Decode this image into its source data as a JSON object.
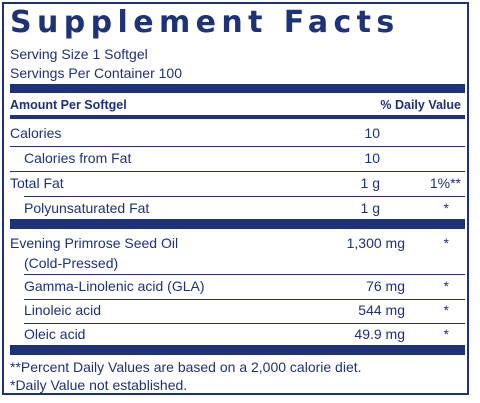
{
  "panel": {
    "title": "Supplement Facts",
    "serving_size": "Serving Size 1 Softgel",
    "servings_per_container": "Servings Per Container 100"
  },
  "header": {
    "amount_per": "Amount Per Softgel",
    "daily_value": "% Daily Value"
  },
  "rows": [
    {
      "name": "Calories",
      "amount": "10",
      "dv": ""
    },
    {
      "name": "Calories from Fat",
      "amount": "10",
      "dv": ""
    },
    {
      "name": "Total Fat",
      "amount": "1 g",
      "dv": "1%**"
    },
    {
      "name": "Polyunsaturated Fat",
      "amount": "1 g",
      "dv": "*"
    },
    {
      "name": "Evening Primrose Seed Oil",
      "name_line2": "(Cold-Pressed)",
      "amount": "1,300 mg",
      "dv": "*"
    },
    {
      "name": "Gamma-Linolenic acid (GLA)",
      "amount": "76 mg",
      "dv": "*"
    },
    {
      "name": "Linoleic acid",
      "amount": "544 mg",
      "dv": "*"
    },
    {
      "name": "Oleic acid",
      "amount": "49.9 mg",
      "dv": "*"
    }
  ],
  "footnotes": [
    "**Percent Daily Values are based on a 2,000 calorie diet.",
    "*Daily Value not established."
  ],
  "colors": {
    "text": "#1e3278",
    "rules": "#1e3278"
  }
}
